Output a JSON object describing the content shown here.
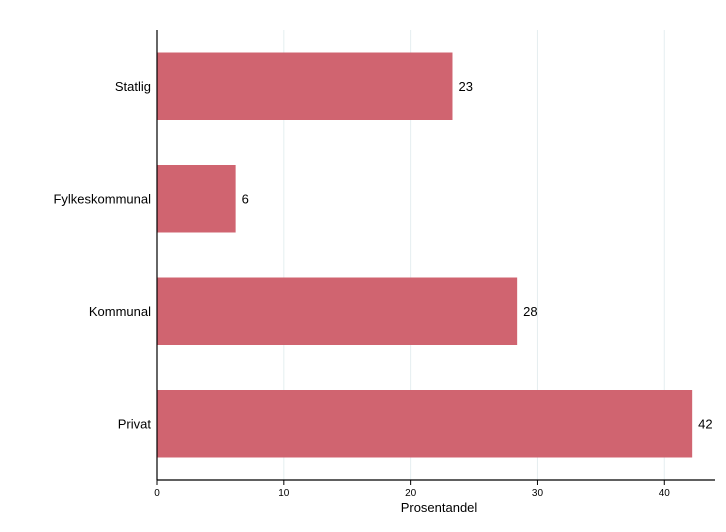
{
  "chart_data": {
    "type": "bar",
    "orientation": "horizontal",
    "categories": [
      "Statlig",
      "Fylkeskommunal",
      "Kommunal",
      "Privat"
    ],
    "values": [
      23.3,
      6.2,
      28.4,
      42.2
    ],
    "data_labels": [
      "23",
      "6",
      "28",
      "42"
    ],
    "xlabel": "Prosentandel",
    "ylabel": "",
    "xlim": [
      0,
      44
    ],
    "xticks": [
      0,
      10,
      20,
      30,
      40
    ],
    "grid": "vertical",
    "legend": "none",
    "colors": {
      "bar": "#D06470",
      "grid": "#E5EEF0",
      "axis": "#000000"
    }
  }
}
